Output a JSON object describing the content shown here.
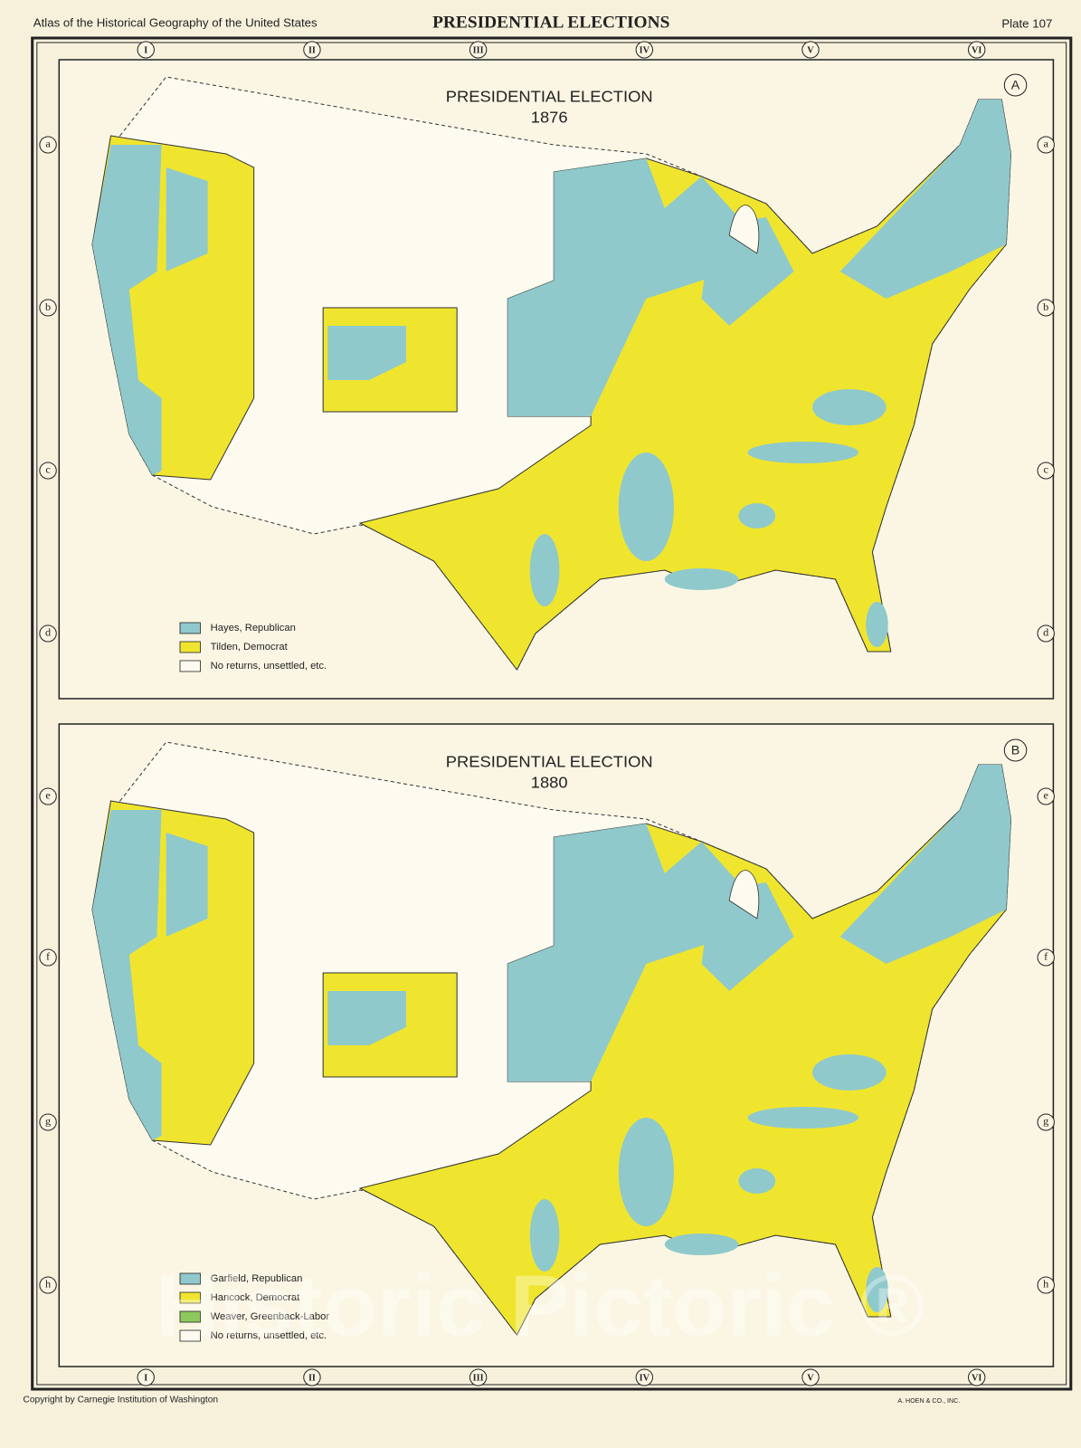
{
  "header": {
    "left": "Atlas of the Historical Geography of the United States",
    "title": "PRESIDENTIAL ELECTIONS",
    "plate": "Plate 107"
  },
  "column_labels": [
    "I",
    "II",
    "III",
    "IV",
    "V",
    "VI"
  ],
  "row_labels": [
    "a",
    "b",
    "c",
    "d",
    "e",
    "f",
    "g",
    "h"
  ],
  "maps": [
    {
      "badge": "A",
      "title": "PRESIDENTIAL ELECTION",
      "year": "1876",
      "legend": [
        {
          "label": "Hayes, Republican",
          "color": "#8fc9cb"
        },
        {
          "label": "Tilden, Democrat",
          "color": "#f0e52e"
        },
        {
          "label": "No returns, unsettled, etc.",
          "color": "#fdfbf0"
        }
      ]
    },
    {
      "badge": "B",
      "title": "PRESIDENTIAL ELECTION",
      "year": "1880",
      "legend": [
        {
          "label": "Garfield, Republican",
          "color": "#8fc9cb"
        },
        {
          "label": "Hancock, Democrat",
          "color": "#f0e52e"
        },
        {
          "label": "Weaver, Greenback-Labor",
          "color": "#8cc85c"
        },
        {
          "label": "No returns, unsettled, etc.",
          "color": "#fdfbf0"
        }
      ]
    }
  ],
  "footer": {
    "copyright": "Copyright by Carnegie Institution of Washington",
    "printer": "A. HOEN & CO., INC."
  },
  "watermark": "Historic Pictoric ®"
}
